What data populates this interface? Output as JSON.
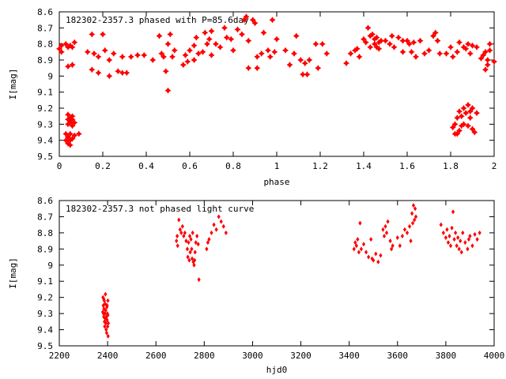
{
  "chart_data": [
    {
      "type": "scatter",
      "title": "182302-2357.3 phased with P=85.6day",
      "xlabel": "phase",
      "ylabel": "I[mag]",
      "xlim": [
        0,
        2
      ],
      "ylim": [
        9.5,
        8.6
      ],
      "y_inverted": true,
      "grid": false,
      "marker": "star",
      "color": "#ff0000",
      "xticks": [
        0,
        0.2,
        0.4,
        0.6,
        0.8,
        1,
        1.2,
        1.4,
        1.6,
        1.8,
        2
      ],
      "xtick_labels": [
        "0",
        "0.2",
        "0.4",
        "0.6",
        "0.8",
        "1",
        "1.2",
        "1.4",
        "1.6",
        "1.8",
        "2"
      ],
      "yticks": [
        8.6,
        8.7,
        8.8,
        8.9,
        9.0,
        9.1,
        9.2,
        9.3,
        9.4,
        9.5
      ],
      "ytick_labels": [
        "8.6",
        "8.7",
        "8.8",
        "8.9",
        "9",
        "9.1",
        "9.2",
        "9.3",
        "9.4",
        "9.5"
      ],
      "points": [
        [
          0.0,
          8.83
        ],
        [
          0.01,
          8.81
        ],
        [
          0.01,
          8.85
        ],
        [
          0.03,
          8.8
        ],
        [
          0.04,
          8.82
        ],
        [
          0.05,
          8.81
        ],
        [
          0.06,
          8.82
        ],
        [
          0.07,
          8.79
        ],
        [
          0.04,
          8.94
        ],
        [
          0.06,
          8.93
        ],
        [
          0.03,
          9.36
        ],
        [
          0.04,
          9.38
        ],
        [
          0.05,
          9.4
        ],
        [
          0.04,
          9.42
        ],
        [
          0.06,
          9.39
        ],
        [
          0.07,
          9.37
        ],
        [
          0.03,
          9.4
        ],
        [
          0.05,
          9.36
        ],
        [
          0.09,
          9.36
        ],
        [
          0.05,
          9.43
        ],
        [
          0.04,
          9.24
        ],
        [
          0.05,
          9.26
        ],
        [
          0.05,
          9.28
        ],
        [
          0.06,
          9.27
        ],
        [
          0.04,
          9.3
        ],
        [
          0.06,
          9.31
        ],
        [
          0.05,
          9.29
        ],
        [
          0.06,
          9.25
        ],
        [
          0.07,
          9.29
        ],
        [
          0.04,
          9.27
        ],
        [
          0.13,
          8.85
        ],
        [
          0.15,
          8.74
        ],
        [
          0.16,
          8.86
        ],
        [
          0.15,
          8.96
        ],
        [
          0.18,
          8.88
        ],
        [
          0.18,
          8.98
        ],
        [
          0.2,
          8.74
        ],
        [
          0.21,
          8.84
        ],
        [
          0.23,
          8.9
        ],
        [
          0.23,
          9.0
        ],
        [
          0.25,
          8.86
        ],
        [
          0.27,
          8.97
        ],
        [
          0.29,
          8.98
        ],
        [
          0.29,
          8.88
        ],
        [
          0.31,
          8.98
        ],
        [
          0.33,
          8.88
        ],
        [
          0.36,
          8.87
        ],
        [
          0.39,
          8.87
        ],
        [
          0.43,
          8.9
        ],
        [
          0.46,
          8.75
        ],
        [
          0.47,
          8.86
        ],
        [
          0.48,
          8.88
        ],
        [
          0.49,
          8.97
        ],
        [
          0.5,
          9.09
        ],
        [
          0.5,
          8.8
        ],
        [
          0.51,
          8.74
        ],
        [
          0.53,
          8.84
        ],
        [
          0.52,
          8.88
        ],
        [
          0.57,
          8.93
        ],
        [
          0.58,
          8.87
        ],
        [
          0.59,
          8.91
        ],
        [
          0.6,
          8.84
        ],
        [
          0.62,
          8.81
        ],
        [
          0.62,
          8.9
        ],
        [
          0.63,
          8.76
        ],
        [
          0.64,
          8.86
        ],
        [
          0.66,
          8.85
        ],
        [
          0.67,
          8.73
        ],
        [
          0.68,
          8.8
        ],
        [
          0.69,
          8.77
        ],
        [
          0.7,
          8.72
        ],
        [
          0.7,
          8.87
        ],
        [
          0.72,
          8.8
        ],
        [
          0.74,
          8.82
        ],
        [
          0.76,
          8.7
        ],
        [
          0.77,
          8.76
        ],
        [
          0.79,
          8.77
        ],
        [
          0.8,
          8.84
        ],
        [
          0.82,
          8.71
        ],
        [
          0.84,
          8.74
        ],
        [
          0.85,
          8.65
        ],
        [
          0.86,
          8.63
        ],
        [
          0.87,
          8.78
        ],
        [
          0.87,
          8.95
        ],
        [
          0.89,
          8.65
        ],
        [
          0.9,
          8.67
        ],
        [
          0.91,
          8.88
        ],
        [
          0.91,
          8.95
        ],
        [
          0.93,
          8.86
        ],
        [
          0.94,
          8.73
        ],
        [
          0.96,
          8.84
        ],
        [
          0.97,
          8.88
        ],
        [
          0.99,
          8.85
        ],
        [
          0.98,
          8.65
        ],
        [
          1.0,
          8.77
        ],
        [
          1.04,
          8.84
        ],
        [
          1.06,
          8.93
        ],
        [
          1.08,
          8.86
        ],
        [
          1.09,
          8.75
        ],
        [
          1.11,
          8.9
        ],
        [
          1.12,
          8.99
        ],
        [
          1.13,
          8.92
        ],
        [
          1.14,
          8.99
        ],
        [
          1.15,
          8.9
        ],
        [
          1.18,
          8.8
        ],
        [
          1.19,
          8.95
        ],
        [
          1.21,
          8.8
        ],
        [
          1.23,
          8.86
        ],
        [
          1.32,
          8.92
        ],
        [
          1.34,
          8.86
        ],
        [
          1.36,
          8.84
        ],
        [
          1.37,
          8.83
        ],
        [
          1.38,
          8.88
        ],
        [
          1.4,
          8.77
        ],
        [
          1.41,
          8.79
        ],
        [
          1.42,
          8.7
        ],
        [
          1.43,
          8.75
        ],
        [
          1.43,
          8.82
        ],
        [
          1.44,
          8.74
        ],
        [
          1.45,
          8.8
        ],
        [
          1.45,
          8.77
        ],
        [
          1.46,
          8.76
        ],
        [
          1.46,
          8.82
        ],
        [
          1.47,
          8.79
        ],
        [
          1.48,
          8.78
        ],
        [
          1.47,
          8.83
        ],
        [
          1.5,
          8.78
        ],
        [
          1.52,
          8.8
        ],
        [
          1.53,
          8.75
        ],
        [
          1.54,
          8.82
        ],
        [
          1.56,
          8.76
        ],
        [
          1.58,
          8.78
        ],
        [
          1.58,
          8.85
        ],
        [
          1.6,
          8.78
        ],
        [
          1.61,
          8.8
        ],
        [
          1.62,
          8.85
        ],
        [
          1.63,
          8.79
        ],
        [
          1.64,
          8.88
        ],
        [
          1.66,
          8.78
        ],
        [
          1.68,
          8.86
        ],
        [
          1.7,
          8.84
        ],
        [
          1.72,
          8.75
        ],
        [
          1.73,
          8.73
        ],
        [
          1.74,
          8.78
        ],
        [
          1.75,
          8.86
        ],
        [
          1.78,
          8.86
        ],
        [
          1.8,
          8.82
        ],
        [
          1.81,
          8.88
        ],
        [
          1.83,
          8.85
        ],
        [
          1.84,
          8.79
        ],
        [
          1.86,
          8.82
        ],
        [
          1.87,
          8.83
        ],
        [
          1.88,
          8.8
        ],
        [
          1.89,
          8.86
        ],
        [
          1.9,
          8.81
        ],
        [
          1.92,
          8.82
        ],
        [
          1.94,
          8.89
        ],
        [
          1.96,
          8.85
        ],
        [
          1.95,
          8.87
        ],
        [
          1.97,
          8.9
        ],
        [
          1.97,
          8.93
        ],
        [
          1.96,
          8.96
        ],
        [
          1.98,
          8.84
        ],
        [
          2.0,
          8.91
        ],
        [
          1.98,
          8.8
        ],
        [
          1.81,
          9.32
        ],
        [
          1.82,
          9.3
        ],
        [
          1.82,
          9.36
        ],
        [
          1.83,
          9.26
        ],
        [
          1.84,
          9.22
        ],
        [
          1.84,
          9.34
        ],
        [
          1.85,
          9.25
        ],
        [
          1.86,
          9.2
        ],
        [
          1.86,
          9.3
        ],
        [
          1.87,
          9.23
        ],
        [
          1.88,
          9.18
        ],
        [
          1.88,
          9.31
        ],
        [
          1.89,
          9.26
        ],
        [
          1.9,
          9.2
        ],
        [
          1.9,
          9.33
        ],
        [
          1.91,
          9.35
        ],
        [
          1.92,
          9.23
        ],
        [
          1.83,
          9.36
        ],
        [
          1.89,
          9.22
        ],
        [
          1.85,
          9.31
        ]
      ]
    },
    {
      "type": "scatter",
      "title": "182302-2357.3 not phased light curve",
      "xlabel": "hjd0",
      "ylabel": "I[mag]",
      "xlim": [
        2200,
        4000
      ],
      "ylim": [
        9.5,
        8.6
      ],
      "y_inverted": true,
      "grid": false,
      "marker": "diamond",
      "color": "#ff0000",
      "xticks": [
        2200,
        2400,
        2600,
        2800,
        3000,
        3200,
        3400,
        3600,
        3800,
        4000
      ],
      "xtick_labels": [
        "2200",
        "2400",
        "2600",
        "2800",
        "3000",
        "3200",
        "3400",
        "3600",
        "3800",
        "4000"
      ],
      "yticks": [
        8.6,
        8.7,
        8.8,
        8.9,
        9.0,
        9.1,
        9.2,
        9.3,
        9.4,
        9.5
      ],
      "ytick_labels": [
        "8.6",
        "8.7",
        "8.8",
        "8.9",
        "9",
        "9.1",
        "9.2",
        "9.3",
        "9.4",
        "9.5"
      ],
      "points": [
        [
          2381,
          9.2
        ],
        [
          2382,
          9.25
        ],
        [
          2383,
          9.3
        ],
        [
          2384,
          9.32
        ],
        [
          2385,
          9.27
        ],
        [
          2386,
          9.22
        ],
        [
          2387,
          9.35
        ],
        [
          2388,
          9.38
        ],
        [
          2389,
          9.3
        ],
        [
          2390,
          9.24
        ],
        [
          2391,
          9.18
        ],
        [
          2392,
          9.28
        ],
        [
          2393,
          9.36
        ],
        [
          2394,
          9.4
        ],
        [
          2395,
          9.32
        ],
        [
          2396,
          9.42
        ],
        [
          2397,
          9.26
        ],
        [
          2398,
          9.34
        ],
        [
          2399,
          9.3
        ],
        [
          2400,
          9.38
        ],
        [
          2401,
          9.22
        ],
        [
          2402,
          9.44
        ],
        [
          2403,
          9.36
        ],
        [
          2380,
          9.29
        ],
        [
          2384,
          9.21
        ],
        [
          2390,
          9.33
        ],
        [
          2398,
          9.25
        ],
        [
          2401,
          9.31
        ],
        [
          2685,
          8.85
        ],
        [
          2688,
          8.82
        ],
        [
          2690,
          8.88
        ],
        [
          2695,
          8.72
        ],
        [
          2700,
          8.78
        ],
        [
          2705,
          8.8
        ],
        [
          2710,
          8.76
        ],
        [
          2715,
          8.82
        ],
        [
          2720,
          8.8
        ],
        [
          2725,
          8.85
        ],
        [
          2730,
          8.9
        ],
        [
          2732,
          8.95
        ],
        [
          2735,
          8.86
        ],
        [
          2738,
          8.97
        ],
        [
          2740,
          8.82
        ],
        [
          2742,
          8.92
        ],
        [
          2745,
          8.84
        ],
        [
          2748,
          8.9
        ],
        [
          2750,
          8.96
        ],
        [
          2752,
          8.8
        ],
        [
          2755,
          8.98
        ],
        [
          2758,
          9.0
        ],
        [
          2760,
          8.97
        ],
        [
          2762,
          8.92
        ],
        [
          2765,
          8.86
        ],
        [
          2770,
          8.82
        ],
        [
          2775,
          8.87
        ],
        [
          2778,
          9.09
        ],
        [
          2810,
          8.9
        ],
        [
          2815,
          8.86
        ],
        [
          2820,
          8.84
        ],
        [
          2830,
          8.8
        ],
        [
          2840,
          8.75
        ],
        [
          2850,
          8.78
        ],
        [
          2860,
          8.7
        ],
        [
          2870,
          8.73
        ],
        [
          2880,
          8.76
        ],
        [
          2890,
          8.8
        ],
        [
          3420,
          8.9
        ],
        [
          3425,
          8.86
        ],
        [
          3430,
          8.88
        ],
        [
          3435,
          8.84
        ],
        [
          3440,
          8.92
        ],
        [
          3445,
          8.74
        ],
        [
          3450,
          8.9
        ],
        [
          3460,
          8.87
        ],
        [
          3470,
          8.92
        ],
        [
          3480,
          8.95
        ],
        [
          3490,
          8.84
        ],
        [
          3495,
          8.96
        ],
        [
          3500,
          8.97
        ],
        [
          3510,
          8.93
        ],
        [
          3520,
          8.98
        ],
        [
          3530,
          8.94
        ],
        [
          3540,
          8.78
        ],
        [
          3545,
          8.82
        ],
        [
          3550,
          8.76
        ],
        [
          3555,
          8.8
        ],
        [
          3560,
          8.73
        ],
        [
          3570,
          8.85
        ],
        [
          3575,
          8.9
        ],
        [
          3580,
          8.88
        ],
        [
          3600,
          8.83
        ],
        [
          3610,
          8.88
        ],
        [
          3620,
          8.82
        ],
        [
          3630,
          8.78
        ],
        [
          3640,
          8.8
        ],
        [
          3650,
          8.76
        ],
        [
          3655,
          8.85
        ],
        [
          3660,
          8.68
        ],
        [
          3663,
          8.74
        ],
        [
          3666,
          8.63
        ],
        [
          3670,
          8.72
        ],
        [
          3673,
          8.65
        ],
        [
          3676,
          8.7
        ],
        [
          3780,
          8.75
        ],
        [
          3790,
          8.8
        ],
        [
          3800,
          8.83
        ],
        [
          3805,
          8.78
        ],
        [
          3810,
          8.86
        ],
        [
          3815,
          8.82
        ],
        [
          3820,
          8.88
        ],
        [
          3825,
          8.77
        ],
        [
          3830,
          8.67
        ],
        [
          3835,
          8.84
        ],
        [
          3840,
          8.8
        ],
        [
          3845,
          8.88
        ],
        [
          3850,
          8.83
        ],
        [
          3855,
          8.9
        ],
        [
          3860,
          8.85
        ],
        [
          3865,
          8.92
        ],
        [
          3870,
          8.8
        ],
        [
          3880,
          8.86
        ],
        [
          3890,
          8.9
        ],
        [
          3895,
          8.84
        ],
        [
          3900,
          8.82
        ],
        [
          3910,
          8.88
        ],
        [
          3920,
          8.81
        ],
        [
          3930,
          8.84
        ],
        [
          3940,
          8.8
        ]
      ]
    }
  ]
}
